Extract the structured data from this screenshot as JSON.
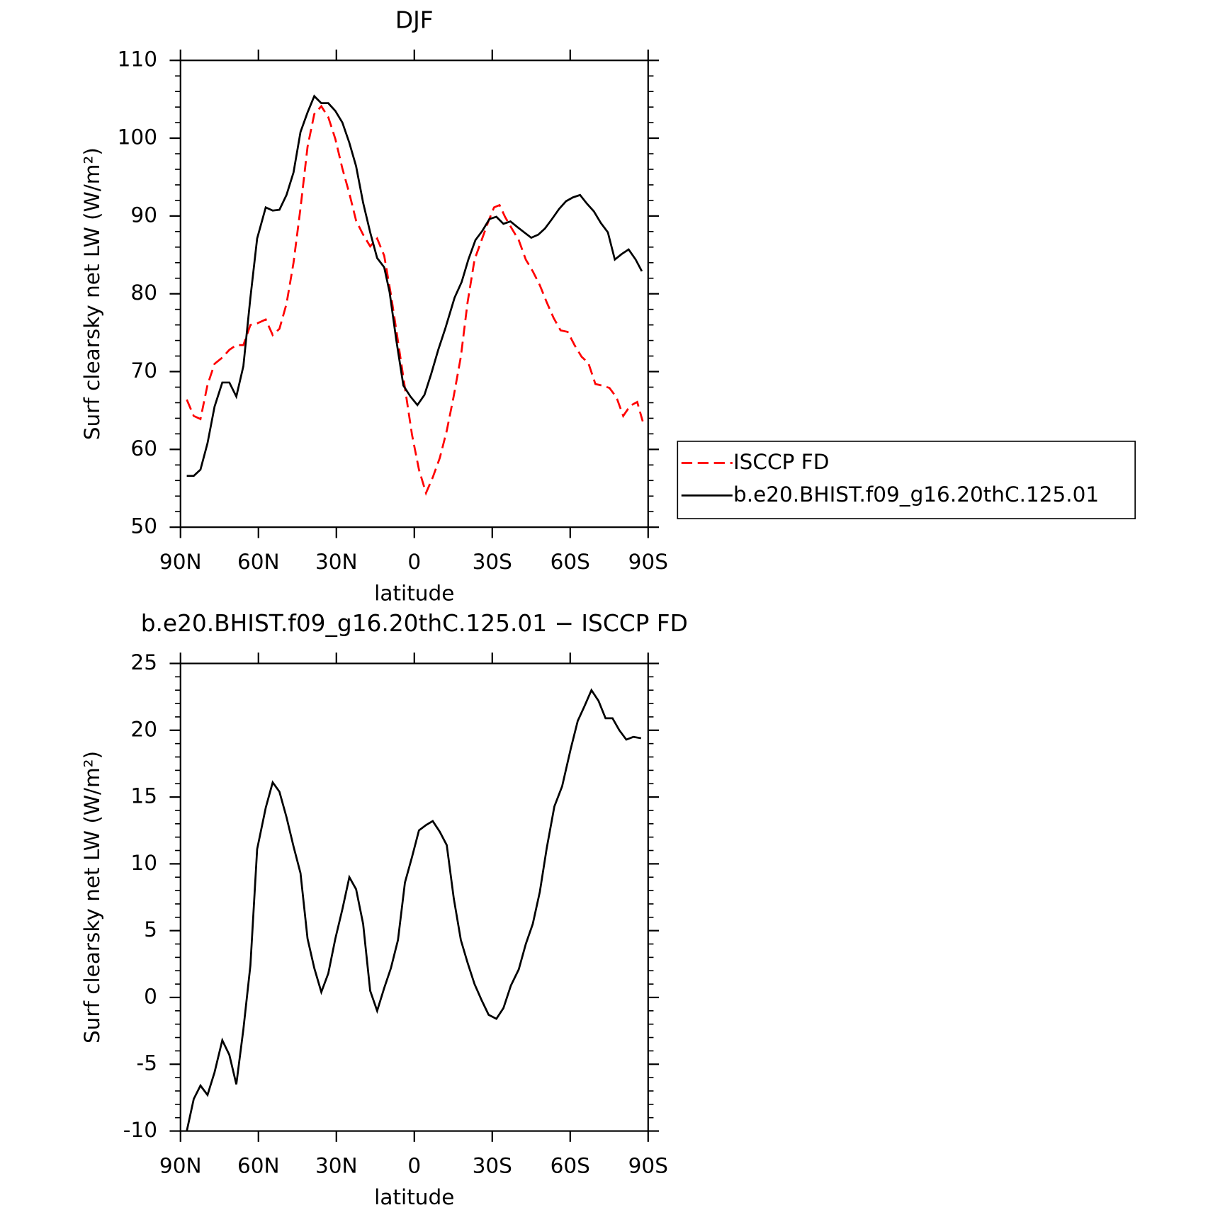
{
  "chart_data": [
    {
      "type": "line",
      "title": "DJF",
      "xlabel": "latitude",
      "ylabel": "Surf clearsky net LW (W/m²)",
      "xlim": [
        90,
        -90
      ],
      "xticks": [
        {
          "value": 90,
          "label": "90N"
        },
        {
          "value": 60,
          "label": "60N"
        },
        {
          "value": 30,
          "label": "30N"
        },
        0,
        {
          "value": -30,
          "label": "30S"
        },
        {
          "value": -60,
          "label": "60S"
        },
        {
          "value": -90,
          "label": "90S"
        }
      ],
      "ylim": [
        50,
        110
      ],
      "yticks": [
        50,
        60,
        70,
        80,
        90,
        100,
        110
      ],
      "legend": "right",
      "series": [
        {
          "name": "ISCCP FD",
          "color": "#ff0000",
          "dash": true,
          "x": [
            87.6,
            84.9,
            82.3,
            79.6,
            76.9,
            73.9,
            71.2,
            68.5,
            65.8,
            63.1,
            60.5,
            57.2,
            54.5,
            51.9,
            49.2,
            46.5,
            43.8,
            41.1,
            38.5,
            35.8,
            33.1,
            30.4,
            27.7,
            25.0,
            22.4,
            19.7,
            17.0,
            14.3,
            11.6,
            9.0,
            6.3,
            3.6,
            0.9,
            -1.8,
            -4.5,
            -7.1,
            -9.8,
            -12.5,
            -15.2,
            -17.9,
            -20.5,
            -23.2,
            -25.9,
            -28.6,
            -30.7,
            -32.8,
            -34.9,
            -37.5,
            -40.2,
            -42.9,
            -45.6,
            -48.3,
            -51.0,
            -53.6,
            -56.3,
            -59.0,
            -61.7,
            -64.4,
            -67.0,
            -69.7,
            -72.4,
            -75.1,
            -77.8,
            -80.4,
            -83.1,
            -85.8,
            -87.9
          ],
          "values": [
            66.4,
            64.3,
            63.9,
            68.3,
            71.0,
            71.8,
            72.8,
            73.4,
            73.4,
            76.0,
            76.2,
            76.7,
            74.7,
            75.5,
            78.7,
            84.0,
            91.0,
            98.9,
            103.1,
            104.1,
            102.7,
            99.9,
            96.1,
            92.9,
            89.4,
            87.6,
            86.1,
            87.1,
            84.9,
            79.9,
            73.9,
            67.9,
            61.9,
            57.4,
            54.4,
            56.4,
            58.9,
            62.4,
            66.9,
            71.9,
            78.9,
            84.4,
            86.9,
            89.4,
            91.1,
            91.4,
            89.9,
            88.4,
            86.9,
            84.4,
            82.9,
            81.1,
            78.9,
            76.9,
            75.3,
            75.1,
            73.4,
            71.9,
            71.1,
            68.4,
            68.2,
            67.9,
            66.7,
            64.3,
            65.6,
            66.1,
            63.6
          ]
        },
        {
          "name": "b.e20.BHIST.f09_g16.20thC.125.01",
          "color": "#000000",
          "x": [
            87.6,
            84.9,
            82.3,
            79.6,
            76.9,
            73.9,
            71.2,
            68.5,
            65.8,
            63.1,
            60.5,
            57.2,
            54.5,
            51.9,
            49.2,
            46.5,
            43.8,
            41.1,
            38.5,
            35.8,
            33.1,
            30.4,
            27.7,
            25.0,
            22.4,
            19.7,
            17.0,
            14.3,
            11.6,
            9.5,
            6.9,
            4.2,
            1.5,
            -1.2,
            -3.9,
            -6.5,
            -9.2,
            -11.9,
            -15.5,
            -18.2,
            -20.8,
            -23.5,
            -26.2,
            -28.9,
            -31.6,
            -34.3,
            -37.0,
            -39.6,
            -42.3,
            -45.0,
            -47.7,
            -50.3,
            -53.0,
            -55.7,
            -58.4,
            -61.1,
            -63.8,
            -66.4,
            -69.1,
            -71.8,
            -74.5,
            -77.2,
            -79.8,
            -82.5,
            -85.2,
            -87.6
          ],
          "values": [
            56.6,
            56.6,
            57.4,
            60.8,
            65.5,
            68.6,
            68.6,
            66.8,
            70.7,
            79.5,
            87.1,
            91.1,
            90.7,
            90.8,
            92.7,
            95.6,
            100.8,
            103.3,
            105.4,
            104.5,
            104.5,
            103.5,
            102.0,
            99.4,
            96.4,
            91.7,
            87.9,
            84.6,
            83.4,
            80.2,
            74.0,
            68.2,
            66.8,
            65.7,
            67.0,
            69.7,
            72.8,
            75.5,
            79.5,
            81.5,
            84.4,
            86.9,
            88.1,
            89.6,
            89.9,
            89.0,
            89.3,
            88.6,
            87.9,
            87.2,
            87.6,
            88.4,
            89.6,
            90.9,
            91.9,
            92.4,
            92.7,
            91.6,
            90.6,
            89.1,
            87.9,
            84.4,
            85.1,
            85.7,
            84.4,
            82.9
          ]
        }
      ]
    },
    {
      "type": "line",
      "title": "b.e20.BHIST.f09_g16.20thC.125.01 − ISCCP FD",
      "xlabel": "latitude",
      "ylabel": "Surf clearsky net LW (W/m²)",
      "xlim": [
        90,
        -90
      ],
      "xticks": [
        {
          "value": 90,
          "label": "90N"
        },
        {
          "value": 60,
          "label": "60N"
        },
        {
          "value": 30,
          "label": "30N"
        },
        0,
        {
          "value": -30,
          "label": "30S"
        },
        {
          "value": -60,
          "label": "60S"
        },
        {
          "value": -90,
          "label": "90S"
        }
      ],
      "ylim": [
        -10,
        25
      ],
      "yticks": [
        -10,
        -5,
        0,
        5,
        10,
        15,
        20,
        25
      ],
      "color": "#000000",
      "x": [
        87.6,
        84.9,
        82.3,
        79.6,
        76.9,
        73.9,
        71.2,
        68.5,
        65.8,
        63.1,
        60.5,
        57.2,
        54.5,
        51.9,
        49.2,
        46.5,
        43.8,
        41.1,
        38.5,
        35.8,
        33.1,
        30.4,
        27.7,
        25.0,
        22.4,
        19.7,
        17.0,
        14.3,
        11.6,
        9.0,
        6.3,
        3.6,
        0.9,
        -1.8,
        -4.5,
        -7.1,
        -9.8,
        -12.5,
        -15.2,
        -17.9,
        -20.5,
        -23.2,
        -25.9,
        -28.6,
        -31.6,
        -34.3,
        -37.2,
        -40.2,
        -42.9,
        -45.6,
        -48.3,
        -51.0,
        -53.9,
        -56.9,
        -60.2,
        -62.9,
        -65.5,
        -68.2,
        -70.9,
        -73.6,
        -76.3,
        -78.9,
        -81.6,
        -84.3,
        -87.3
      ],
      "values": [
        -10.0,
        -7.6,
        -6.6,
        -7.3,
        -5.6,
        -3.2,
        -4.3,
        -6.5,
        -2.4,
        2.4,
        11.1,
        14.2,
        16.1,
        15.4,
        13.5,
        11.3,
        9.3,
        4.4,
        2.2,
        0.4,
        1.8,
        4.4,
        6.6,
        9.0,
        8.1,
        5.5,
        0.5,
        -1.0,
        0.7,
        2.2,
        4.3,
        8.6,
        10.5,
        12.5,
        12.9,
        13.2,
        12.4,
        11.4,
        7.4,
        4.3,
        2.6,
        1.0,
        -0.2,
        -1.3,
        -1.6,
        -0.8,
        0.9,
        2.1,
        4.0,
        5.5,
        7.9,
        11.2,
        14.3,
        15.8,
        18.6,
        20.7,
        21.8,
        23.0,
        22.2,
        20.9,
        20.9,
        20.0,
        19.3,
        19.5,
        19.4
      ]
    }
  ]
}
